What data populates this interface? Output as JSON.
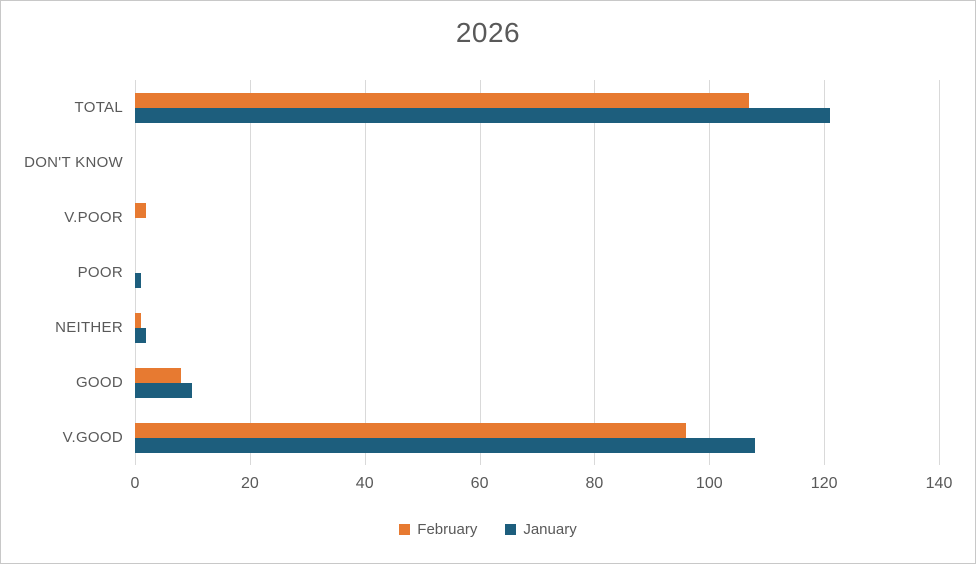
{
  "chart_data": {
    "type": "bar",
    "orientation": "horizontal",
    "title": "2026",
    "categories": [
      "TOTAL",
      "DON'T KNOW",
      "V.POOR",
      "POOR",
      "NEITHER",
      "GOOD",
      "V.GOOD"
    ],
    "series": [
      {
        "name": "February",
        "color": "#E77A31",
        "values": [
          107,
          0,
          2,
          0,
          1,
          8,
          96
        ]
      },
      {
        "name": "January",
        "color": "#1D5E7D",
        "values": [
          121,
          0,
          0,
          1,
          2,
          10,
          108
        ]
      }
    ],
    "xlim": [
      0,
      140
    ],
    "x_ticks": [
      "0",
      "20",
      "40",
      "60",
      "80",
      "100",
      "120",
      "140"
    ],
    "grid": true,
    "legend_position": "bottom",
    "title_color": "#595959",
    "axis_text_color": "#595959",
    "gridline_color": "#D9D9D9",
    "background_color": "#FFFFFF",
    "border_color": "#C8C8C8"
  }
}
